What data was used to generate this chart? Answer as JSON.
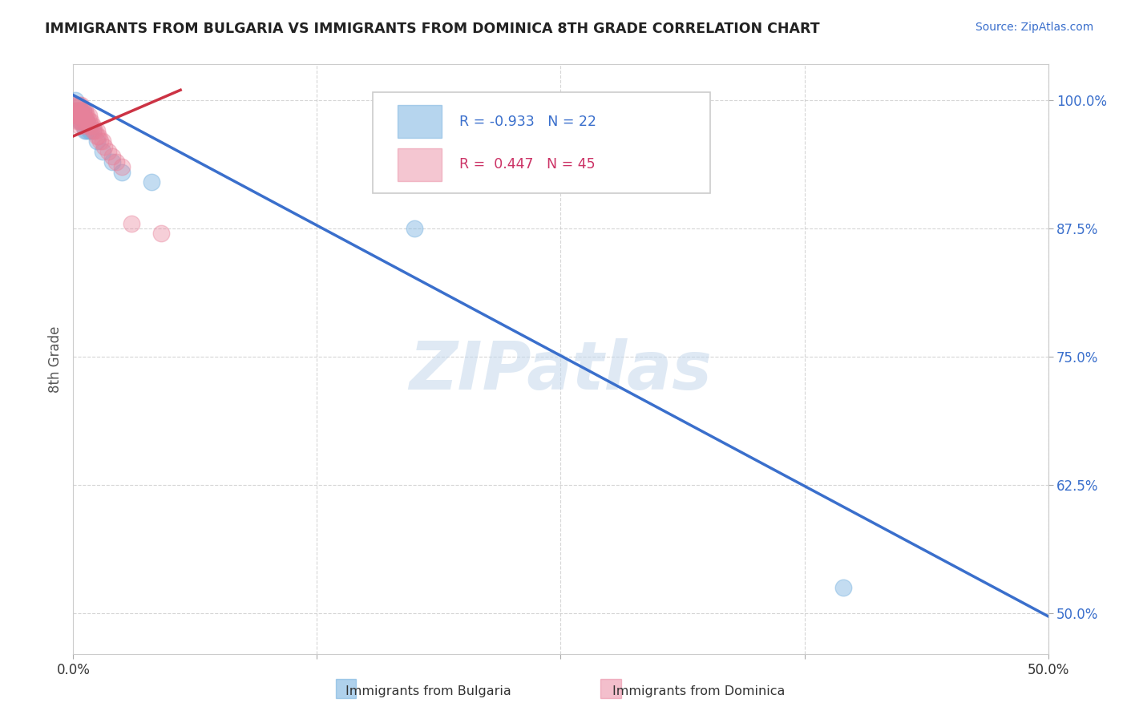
{
  "title": "IMMIGRANTS FROM BULGARIA VS IMMIGRANTS FROM DOMINICA 8TH GRADE CORRELATION CHART",
  "source_text": "Source: ZipAtlas.com",
  "ylabel": "8th Grade",
  "xlim": [
    0.0,
    0.5
  ],
  "ylim": [
    0.46,
    1.035
  ],
  "xtick_labels": [
    "0.0%",
    "",
    "",
    "",
    "50.0%"
  ],
  "xtick_values": [
    0.0,
    0.125,
    0.25,
    0.375,
    0.5
  ],
  "ytick_labels": [
    "100.0%",
    "87.5%",
    "75.0%",
    "62.5%",
    "50.0%"
  ],
  "ytick_values": [
    1.0,
    0.875,
    0.75,
    0.625,
    0.5
  ],
  "bulgaria_color": "#7ab3e0",
  "dominica_color": "#e8819a",
  "bulgaria_R": -0.933,
  "bulgaria_N": 22,
  "dominica_R": 0.447,
  "dominica_N": 45,
  "bulgaria_line_x": [
    0.0,
    0.5
  ],
  "bulgaria_line_y": [
    1.005,
    0.497
  ],
  "dominica_line_x": [
    0.0,
    0.055
  ],
  "dominica_line_y": [
    0.965,
    1.01
  ],
  "bulgaria_scatter_x": [
    0.001,
    0.002,
    0.003,
    0.003,
    0.004,
    0.004,
    0.005,
    0.005,
    0.006,
    0.006,
    0.007,
    0.007,
    0.008,
    0.009,
    0.01,
    0.012,
    0.015,
    0.02,
    0.025,
    0.04,
    0.175,
    0.395
  ],
  "bulgaria_scatter_y": [
    1.0,
    0.99,
    0.99,
    0.98,
    0.99,
    0.98,
    0.99,
    0.98,
    0.98,
    0.97,
    0.98,
    0.97,
    0.97,
    0.97,
    0.97,
    0.96,
    0.95,
    0.94,
    0.93,
    0.92,
    0.875,
    0.525
  ],
  "dominica_scatter_x": [
    0.001,
    0.001,
    0.001,
    0.002,
    0.002,
    0.002,
    0.002,
    0.003,
    0.003,
    0.003,
    0.003,
    0.003,
    0.004,
    0.004,
    0.004,
    0.004,
    0.005,
    0.005,
    0.005,
    0.005,
    0.006,
    0.006,
    0.006,
    0.007,
    0.007,
    0.008,
    0.008,
    0.008,
    0.009,
    0.009,
    0.01,
    0.01,
    0.011,
    0.012,
    0.012,
    0.013,
    0.014,
    0.015,
    0.016,
    0.018,
    0.02,
    0.022,
    0.025,
    0.03,
    0.045
  ],
  "dominica_scatter_y": [
    0.995,
    0.99,
    0.985,
    0.995,
    0.99,
    0.985,
    0.98,
    0.995,
    0.99,
    0.985,
    0.98,
    0.975,
    0.995,
    0.99,
    0.985,
    0.98,
    0.99,
    0.985,
    0.98,
    0.975,
    0.99,
    0.985,
    0.98,
    0.985,
    0.98,
    0.985,
    0.98,
    0.975,
    0.98,
    0.975,
    0.975,
    0.97,
    0.97,
    0.97,
    0.965,
    0.965,
    0.96,
    0.96,
    0.955,
    0.95,
    0.945,
    0.94,
    0.935,
    0.88,
    0.87
  ],
  "watermark_text": "ZIPatlas",
  "watermark_color": "#c5d8ec",
  "watermark_alpha": 0.55,
  "legend_R_blue_color": "#3a6fcc",
  "legend_R_pink_color": "#cc3366",
  "grid_color": "#cccccc",
  "grid_alpha": 0.8,
  "bg_color": "#ffffff",
  "title_color": "#222222",
  "source_color": "#3a6fcc",
  "ylabel_color": "#555555",
  "tick_color_right": "#3a6fcc",
  "tick_color_bottom": "#333333"
}
